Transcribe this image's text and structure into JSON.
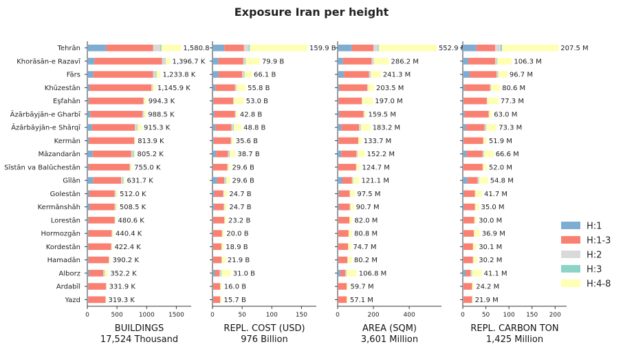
{
  "title": "Exposure Iran per height",
  "chart_data": {
    "type": "bar",
    "orientation": "horizontal",
    "stacked": true,
    "categories": [
      "Tehrān",
      "Khorāsān-e Razavī",
      "Fārs",
      "Khūzestān",
      "Eşfahān",
      "Āzārbāyjān-e Gharbī",
      "Āzārbāyjān-e Shārqī",
      "Kermān",
      "Māzandarān",
      "Sīstān va Balūchestān",
      "Gīlān",
      "Golestān",
      "Kermānshāh",
      "Lorestān",
      "Hormozgān",
      "Kordestān",
      "Hamadān",
      "Alborz",
      "Ardabīl",
      "Yazd"
    ],
    "legend": {
      "position": "right",
      "entries": [
        "H:1",
        "H:1-3",
        "H:2",
        "H:3",
        "H:4-8"
      ]
    },
    "colors": {
      "H:1": "#7fadd1",
      "H:1-3": "#fa8072",
      "H:2": "#d9d9d9",
      "H:3": "#8dd3c7",
      "H:4-8": "#ffffb3"
    },
    "panels": [
      {
        "xlabel": "BUILDINGS",
        "total": "17,524 Thousand",
        "xlim": [
          0,
          1750
        ],
        "ticks": [
          0,
          500,
          1000,
          1500
        ],
        "totals": [
          1580.8,
          1396.7,
          1233.8,
          1145.9,
          994.3,
          988.5,
          915.3,
          813.9,
          805.2,
          755.0,
          631.7,
          512.0,
          508.5,
          480.6,
          440.4,
          422.4,
          390.2,
          352.2,
          331.9,
          319.3
        ],
        "labels": [
          "1,580.8 K",
          "1,396.7 K",
          "1,233.8 K",
          "1,145.9 K",
          "994.3 K",
          "988.5 K",
          "915.3 K",
          "813.9 K",
          "805.2 K",
          "755.0 K",
          "631.7 K",
          "512.0 K",
          "508.5 K",
          "480.6 K",
          "440.4 K",
          "422.4 K",
          "390.2 K",
          "352.2 K",
          "331.9 K",
          "319.3 K"
        ],
        "series": [
          {
            "name": "H:1",
            "values": [
              320,
              120,
              100,
              40,
              25,
              50,
              80,
              30,
              90,
              25,
              100,
              30,
              40,
              20,
              20,
              20,
              20,
              30,
              15,
              15
            ]
          },
          {
            "name": "H:1-3",
            "values": [
              790,
              1140,
              1010,
              1040,
              920,
              880,
              720,
              760,
              650,
              690,
              470,
              430,
              420,
              440,
              390,
              380,
              340,
              240,
              300,
              290
            ]
          },
          {
            "name": "H:2",
            "values": [
              120,
              55,
              40,
              20,
              10,
              20,
              35,
              10,
              25,
              10,
              25,
              15,
              15,
              8,
              10,
              8,
              10,
              20,
              6,
              6
            ]
          },
          {
            "name": "H:3",
            "values": [
              20,
              5,
              15,
              5,
              2,
              5,
              10,
              2,
              20,
              2,
              15,
              5,
              5,
              2,
              2,
              2,
              2,
              5,
              2,
              2
            ]
          },
          {
            "name": "H:4-8",
            "values": [
              330.8,
              76.7,
              68.8,
              40.9,
              37.3,
              33.5,
              70.3,
              11.9,
              20.2,
              28.0,
              21.7,
              32.0,
              28.5,
              10.6,
              18.4,
              12.4,
              18.2,
              57.2,
              8.9,
              6.3
            ]
          }
        ]
      },
      {
        "xlabel": "REPL. COST (USD)",
        "total": "976 Billion",
        "xlim": [
          0,
          175
        ],
        "ticks": [
          0,
          50,
          100,
          150
        ],
        "totals": [
          159.9,
          79.9,
          66.1,
          55.8,
          53.0,
          42.8,
          48.8,
          35.6,
          38.7,
          29.6,
          29.6,
          24.7,
          24.7,
          23.2,
          20.0,
          18.9,
          21.9,
          31.0,
          16.0,
          15.7
        ],
        "labels": [
          "159.9 B",
          "79.9 B",
          "66.1 B",
          "55.8 B",
          "53.0 B",
          "42.8 B",
          "48.8 B",
          "35.6 B",
          "38.7 B",
          "29.6 B",
          "29.6 B",
          "24.7 B",
          "24.7 B",
          "23.2 B",
          "20.0 B",
          "18.9 B",
          "21.9 B",
          "31.0 B",
          "16.0 B",
          "15.7 B"
        ],
        "series": [
          {
            "name": "H:1",
            "values": [
              20,
              10,
              10,
              5,
              2,
              3,
              5,
              2,
              6,
              1,
              8,
              3,
              3,
              1,
              1,
              1,
              1,
              4,
              1,
              1
            ]
          },
          {
            "name": "H:1-3",
            "values": [
              33,
              42,
              40,
              33,
              33,
              35,
              27,
              29,
              20,
              24,
              12,
              15,
              16,
              19,
              15,
              14,
              14,
              8,
              12,
              12
            ]
          },
          {
            "name": "H:2",
            "values": [
              8,
              3,
              3,
              2,
              1,
              1,
              3,
              1,
              2,
              1,
              2,
              1,
              1,
              0.5,
              0.5,
              0.5,
              1,
              2,
              0.5,
              0.5
            ]
          },
          {
            "name": "H:3",
            "values": [
              2,
              1,
              1,
              0.5,
              0.2,
              0.3,
              1,
              0.2,
              1,
              0.2,
              1,
              0.3,
              0.3,
              0.2,
              0.2,
              0.2,
              0.2,
              1,
              0.2,
              0.2
            ]
          },
          {
            "name": "H:4-8",
            "values": [
              96.9,
              23.9,
              12.1,
              15.3,
              16.8,
              3.5,
              12.8,
              3.4,
              9.7,
              3.4,
              6.6,
              5.4,
              4.4,
              2.5,
              3.3,
              3.2,
              5.7,
              16.0,
              2.3,
              2.0
            ]
          }
        ]
      },
      {
        "xlabel": "AREA (SQM)",
        "total": "3,601 Million",
        "xlim": [
          0,
          580
        ],
        "ticks": [
          0,
          200,
          400
        ],
        "totals": [
          552.9,
          286.2,
          241.3,
          203.5,
          197.0,
          159.5,
          183.2,
          133.7,
          152.2,
          124.7,
          121.1,
          97.5,
          90.7,
          82.0,
          80.8,
          74.7,
          80.2,
          106.8,
          59.7,
          57.1
        ],
        "labels": [
          "552.9 M",
          "286.2 M",
          "241.3 M",
          "203.5 M",
          "197.0 M",
          "159.5 M",
          "183.2 M",
          "133.7 M",
          "152.2 M",
          "124.7 M",
          "121.1 M",
          "97.5 M",
          "90.7 M",
          "82.0 M",
          "80.8 M",
          "74.7 M",
          "80.2 M",
          "106.8 M",
          "59.7 M",
          "57.1 M"
        ],
        "series": [
          {
            "name": "H:1",
            "values": [
              80,
              30,
              35,
              10,
              5,
              10,
              20,
              5,
              20,
              3,
              25,
              7,
              8,
              3,
              3,
              3,
              4,
              15,
              2,
              2
            ]
          },
          {
            "name": "H:1-3",
            "values": [
              120,
              160,
              140,
              155,
              130,
              135,
              100,
              110,
              85,
              100,
              55,
              60,
              60,
              63,
              58,
              55,
              50,
              28,
              48,
              48
            ]
          },
          {
            "name": "H:2",
            "values": [
              25,
              10,
              8,
              5,
              2,
              3,
              8,
              2,
              5,
              2,
              5,
              2,
              2,
              1,
              1,
              1,
              2,
              5,
              1,
              1
            ]
          },
          {
            "name": "H:3",
            "values": [
              5,
              2,
              2,
              1,
              0.5,
              1,
              2,
              0.5,
              2,
              0.5,
              2,
              1,
              1,
              0.5,
              0.5,
              0.5,
              0.5,
              2,
              0.5,
              0.5
            ]
          },
          {
            "name": "H:4-8",
            "values": [
              322.9,
              84.2,
              56.3,
              32.5,
              59.5,
              10.5,
              53.2,
              16.2,
              40.2,
              19.2,
              34.1,
              27.5,
              19.7,
              14.5,
              18.3,
              15.2,
              23.7,
              56.8,
              8.2,
              5.6
            ]
          }
        ]
      },
      {
        "xlabel": "REPL. CARBON TON",
        "total": "1,425 Million",
        "xlim": [
          0,
          225
        ],
        "ticks": [
          0,
          50,
          100,
          150,
          200
        ],
        "totals": [
          207.5,
          106.3,
          96.7,
          80.6,
          77.3,
          63.0,
          73.3,
          51.9,
          66.6,
          52.0,
          54.8,
          41.7,
          35.0,
          30.0,
          36.9,
          30.1,
          30.2,
          41.1,
          24.2,
          21.9
        ],
        "labels": [
          "207.5 M",
          "106.3 M",
          "96.7 M",
          "80.6 M",
          "77.3 M",
          "63.0 M",
          "73.3 M",
          "51.9 M",
          "66.6 M",
          "52.0 M",
          "54.8 M",
          "41.7 M",
          "35.0 M",
          "30.0 M",
          "36.9 M",
          "30.1 M",
          "30.2 M",
          "41.1 M",
          "24.2 M",
          "21.9 M"
        ],
        "series": [
          {
            "name": "H:1",
            "values": [
              30,
              12,
              15,
              4,
              2,
              4,
              7,
              2,
              8,
              1,
              10,
              3,
              3,
              1,
              1,
              1,
              1,
              6,
              1,
              1
            ]
          },
          {
            "name": "H:1-3",
            "values": [
              40,
              58,
              58,
              55,
              50,
              52,
              40,
              42,
              35,
              42,
              22,
              23,
              23,
              24,
              23,
              21,
              21,
              11,
              19,
              19
            ]
          },
          {
            "name": "H:2",
            "values": [
              12,
              4,
              3,
              2,
              1,
              1,
              3,
              1,
              2,
              1,
              2,
              1,
              1,
              0.5,
              0.5,
              0.5,
              1,
              2,
              0.5,
              0.5
            ]
          },
          {
            "name": "H:3",
            "values": [
              3,
              1,
              1,
              0.5,
              0.2,
              0.3,
              1,
              0.2,
              1,
              0.2,
              1,
              0.3,
              0.3,
              0.2,
              0.2,
              0.2,
              0.2,
              1,
              0.2,
              0.2
            ]
          },
          {
            "name": "H:4-8",
            "values": [
              122.5,
              31.3,
              19.7,
              19.1,
              24.1,
              5.7,
              22.3,
              6.7,
              20.6,
              7.8,
              19.8,
              14.4,
              7.7,
              4.3,
              12.2,
              7.4,
              8.0,
              21.1,
              3.5,
              1.2
            ]
          }
        ]
      }
    ]
  }
}
